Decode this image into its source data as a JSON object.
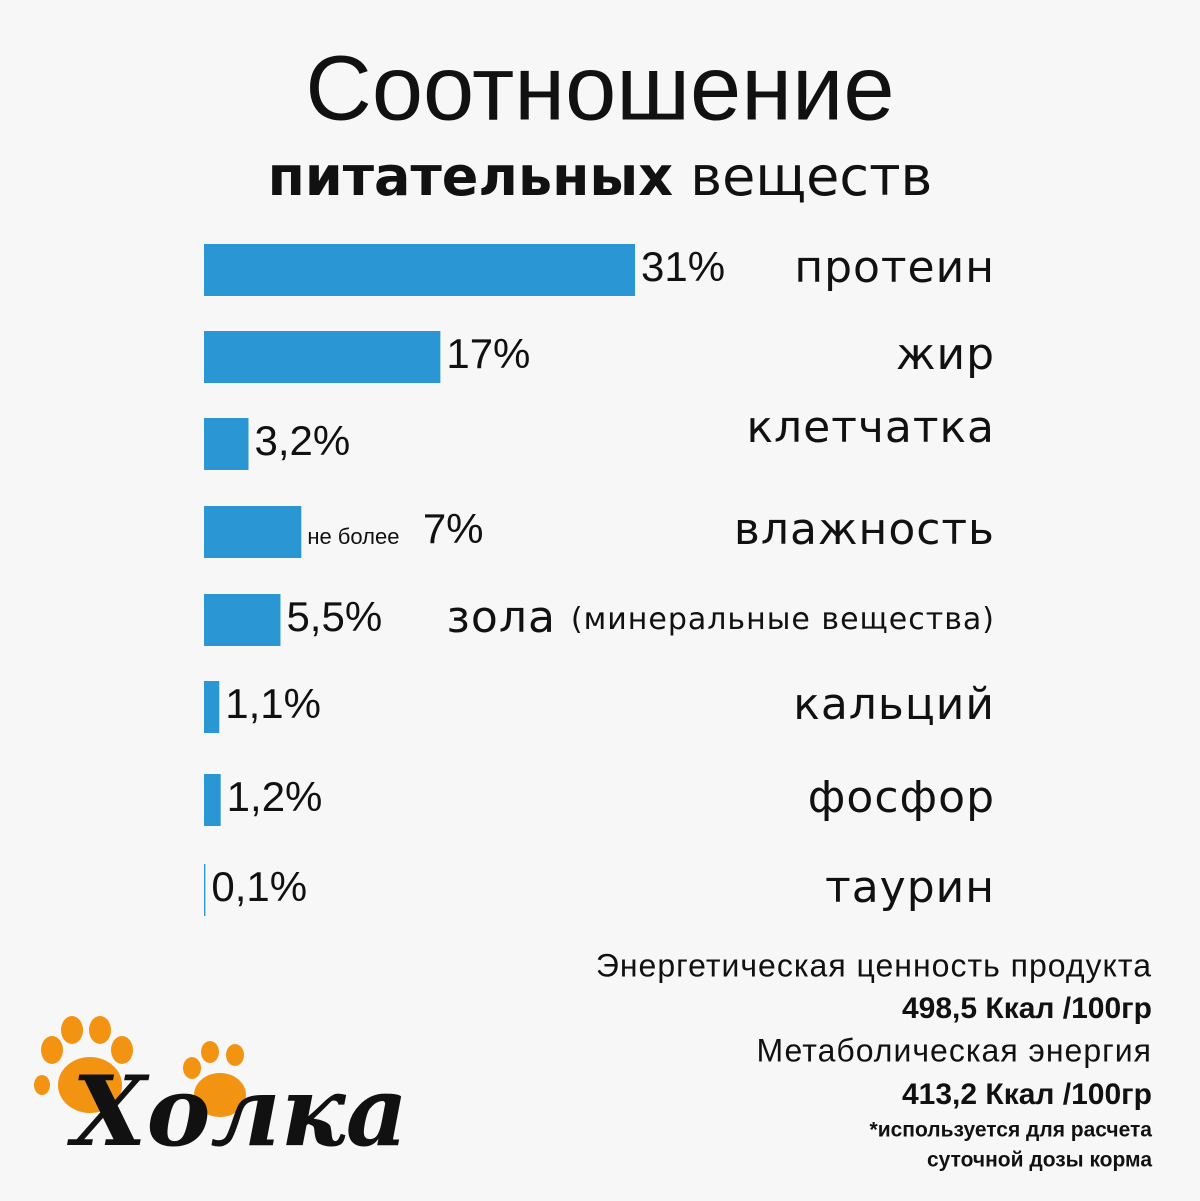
{
  "chart_data": {
    "type": "bar",
    "orientation": "horizontal",
    "title": "Соотношение",
    "subtitle_bold": "питательных",
    "subtitle": "веществ",
    "categories": [
      "протеин",
      "жир",
      "клетчатка",
      "влажность",
      "зола",
      "кальций",
      "фосфор",
      "таурин"
    ],
    "category_notes": [
      null,
      null,
      null,
      null,
      "(минеральные вещества)",
      null,
      null,
      null
    ],
    "values": [
      31,
      17,
      3.2,
      7,
      5.5,
      1.1,
      1.2,
      0.1
    ],
    "value_labels": [
      "31%",
      "17%",
      "3,2%",
      "7%",
      "5,5%",
      "1,1%",
      "1,2%",
      "0,1%"
    ],
    "value_notes": [
      null,
      null,
      null,
      "не более",
      null,
      null,
      null,
      null
    ],
    "xlim": [
      0,
      31
    ],
    "color": "#2a96d4"
  },
  "footer": {
    "energy_label": "Энергетическая ценность продукта",
    "energy_value": "498,5 Ккал /100гр",
    "metabolic_label": "Метаболическая энергия",
    "metabolic_value": "413,2 Ккал /100гр",
    "note_line1": "*используется для расчета",
    "note_line2": "суточной дозы корма"
  },
  "logo": "Холка"
}
